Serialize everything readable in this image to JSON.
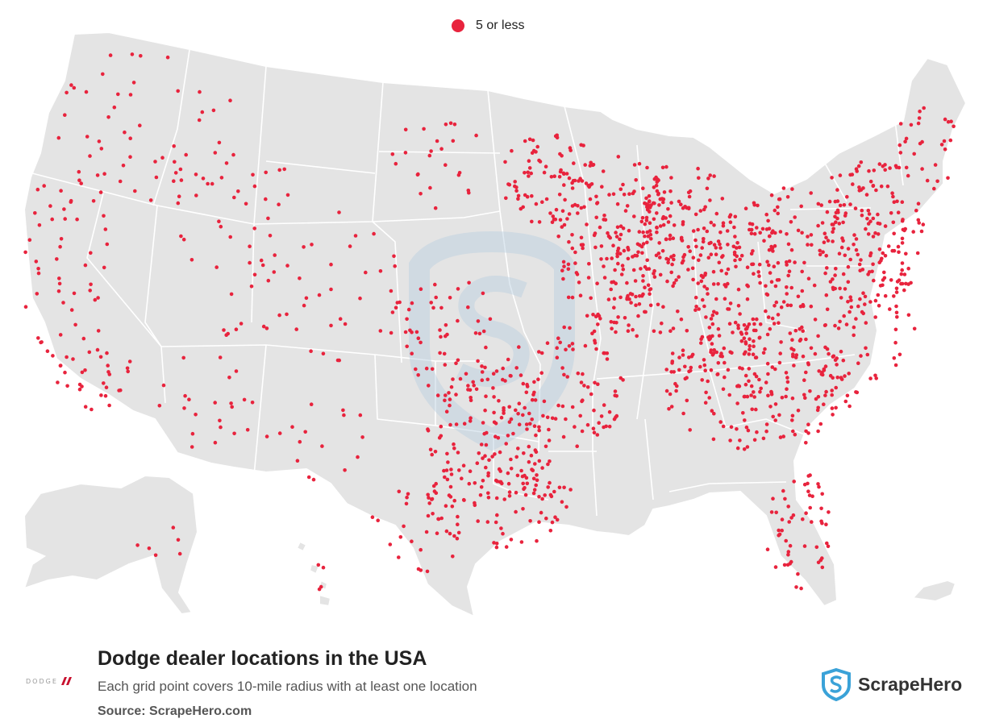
{
  "legend": {
    "label": "5 or less",
    "color": "#e8233d"
  },
  "title": "Dodge dealer locations in the USA",
  "subtitle": "Each grid point covers 10-mile radius with at least one location",
  "source": "Source: ScrapeHero.com",
  "brand": {
    "name": "ScrapeHero",
    "color": "#3aa2d8"
  },
  "logo": {
    "text": "DODGE"
  },
  "colors": {
    "land": "#e4e4e4",
    "borders": "#ffffff",
    "dot": "#e8233d"
  },
  "icons": {
    "legend": "dot-marker-icon",
    "brand": "scrapehero-shield-icon",
    "logo": "dodge-stripes-icon"
  }
}
